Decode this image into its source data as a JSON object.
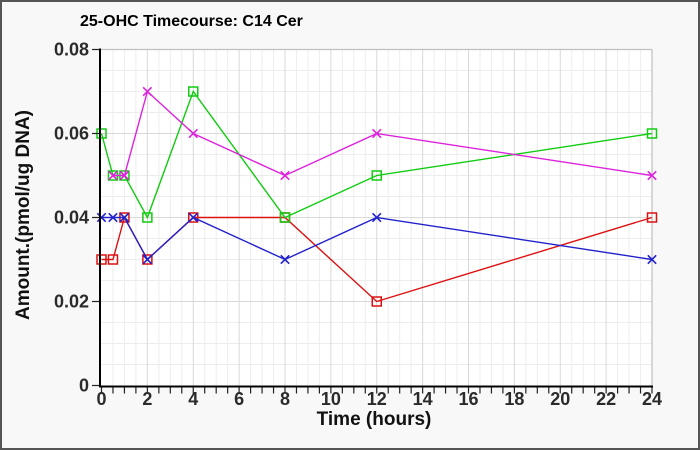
{
  "chart_data": {
    "type": "line",
    "title": "25-OHC Timecourse: C14 Cer",
    "xlabel": "Time (hours)",
    "ylabel": "Amount.(pmol/ug DNA)",
    "xlim": [
      0,
      24
    ],
    "ylim": [
      0,
      0.08
    ],
    "x_tick_values": [
      0,
      2,
      4,
      6,
      8,
      10,
      12,
      14,
      16,
      18,
      20,
      22,
      24
    ],
    "x_tick_labels": [
      "0",
      "2",
      "4",
      "6",
      "8",
      "10",
      "12",
      "14",
      "16",
      "18",
      "20",
      "22",
      "24"
    ],
    "x_minor_step": 0.5,
    "y_tick_values": [
      0,
      0.02,
      0.04,
      0.06,
      0.08
    ],
    "y_tick_labels": [
      "0",
      "0.02",
      "0.04",
      "0.06",
      "0.08"
    ],
    "y_minor_step": 0.005,
    "grid": "major and minor gridlines on, white plot area",
    "legend_position": "none",
    "series": [
      {
        "name": "red-open-squares",
        "color": "#dd1111",
        "marker": "square",
        "points": [
          [
            0,
            0.03
          ],
          [
            0.5,
            0.03
          ],
          [
            1,
            0.04
          ],
          [
            2,
            0.03
          ],
          [
            4,
            0.04
          ],
          [
            8,
            0.04
          ],
          [
            12,
            0.02
          ],
          [
            24,
            0.04
          ]
        ]
      },
      {
        "name": "blue-x-marks",
        "color": "#2222cc",
        "marker": "x",
        "points": [
          [
            0,
            0.04
          ],
          [
            0.5,
            0.04
          ],
          [
            1,
            0.04
          ],
          [
            2,
            0.03
          ],
          [
            4,
            0.04
          ],
          [
            8,
            0.03
          ],
          [
            12,
            0.04
          ],
          [
            24,
            0.03
          ]
        ]
      },
      {
        "name": "green-open-squares",
        "color": "#11cc11",
        "marker": "square",
        "points": [
          [
            0,
            0.06
          ],
          [
            0.5,
            0.05
          ],
          [
            1,
            0.05
          ],
          [
            2,
            0.04
          ],
          [
            4,
            0.07
          ],
          [
            8,
            0.04
          ],
          [
            12,
            0.05
          ],
          [
            24,
            0.06
          ]
        ]
      },
      {
        "name": "magenta-x-marks",
        "color": "#dd22dd",
        "marker": "x",
        "points": [
          [
            0.5,
            0.05
          ],
          [
            1,
            0.05
          ],
          [
            2,
            0.07
          ],
          [
            4,
            0.06
          ],
          [
            8,
            0.05
          ],
          [
            12,
            0.06
          ],
          [
            24,
            0.05
          ]
        ]
      }
    ],
    "colors": {
      "plot_background": "#ffffff",
      "figure_background": "#f8f8f8",
      "grid_minor": "#ededed",
      "grid_major": "#d9d9d9",
      "plot_border": "#bfbfbf",
      "axis": "#000000",
      "tick": "#222222",
      "tick_text": "#2b2b2b",
      "frame_border": "#555555"
    }
  }
}
